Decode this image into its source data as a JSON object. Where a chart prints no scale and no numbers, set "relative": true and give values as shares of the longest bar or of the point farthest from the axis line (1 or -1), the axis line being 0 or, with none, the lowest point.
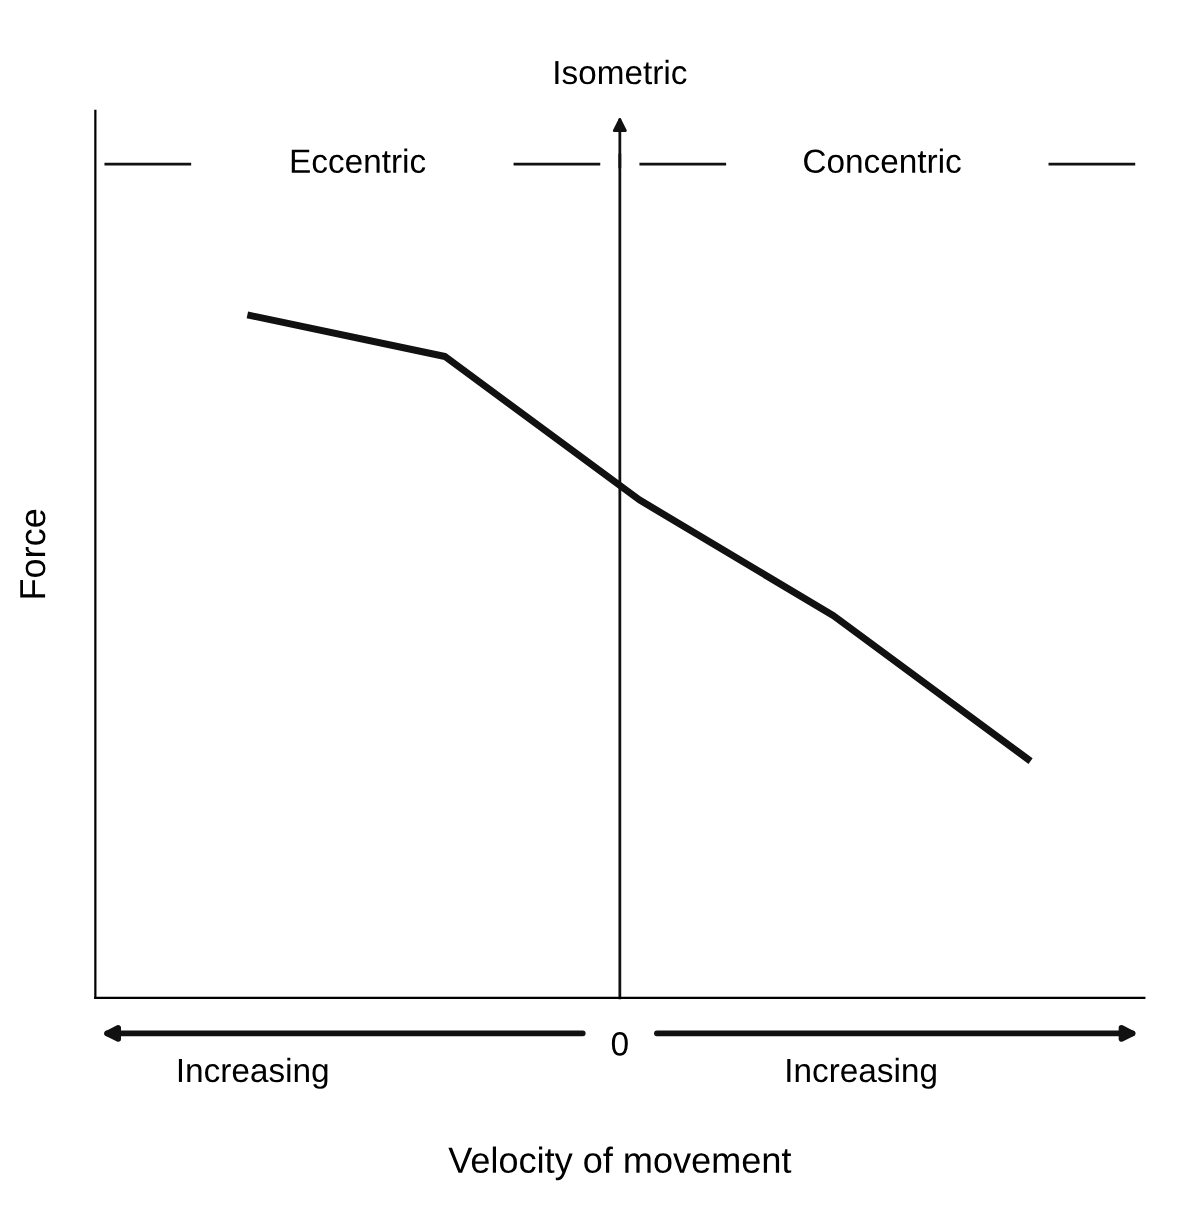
{
  "chart_data": {
    "type": "line",
    "relative": true,
    "xlabel": "Velocity of movement",
    "ylabel": "Force",
    "categories": [
      null,
      null,
      null,
      null,
      null
    ],
    "series": [
      {
        "color": "#111111",
        "values": [
          1,
          0.94,
          0.73,
          0.56,
          0.35
        ]
      }
    ],
    "annotations": [
      "Eccentric",
      "Concentric",
      "Increasing",
      "Increasing",
      "0",
      "Isometric"
    ],
    "legend": false,
    "marker": "none",
    "line_style": "solid"
  }
}
